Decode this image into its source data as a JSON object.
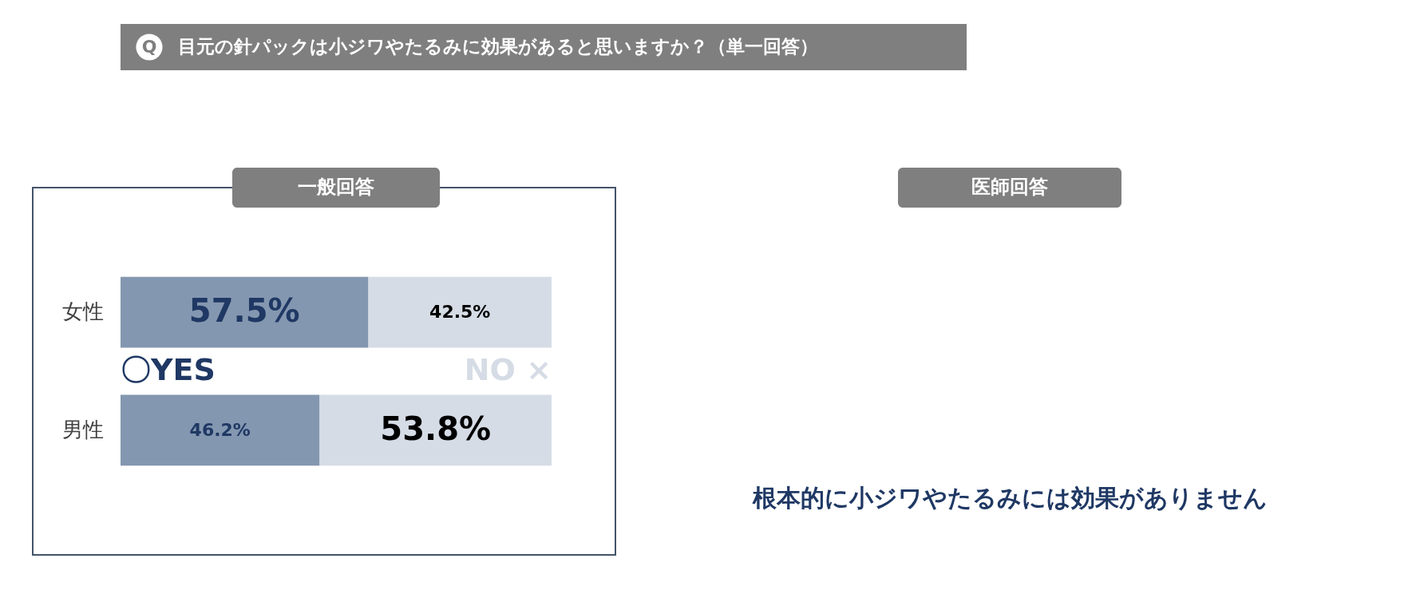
{
  "chart_data": [
    {
      "type": "bar",
      "orientation": "horizontal",
      "stacked": true,
      "title": "目元の針パックは小ジワやたるみに効果があると思いますか？（単一回答）",
      "subtitle": "一般回答",
      "annotations": [
        "Q"
      ],
      "categories": [
        "女性",
        "男性"
      ],
      "series": [
        {
          "name": "〇YES",
          "color": "#8497b0",
          "values": [
            57.5,
            46.2
          ],
          "value_labels": [
            "57.5%",
            "46.2%"
          ]
        },
        {
          "name": "NO ×",
          "color": "#d6dce5",
          "values": [
            42.5,
            53.8
          ],
          "value_labels": [
            "42.5%",
            "53.8%"
          ]
        }
      ],
      "tick_labels": "y"
    },
    {
      "type": "other",
      "title": "医師回答",
      "annotations": [
        "根本的に小ジワやたるみには効果がありません"
      ]
    }
  ]
}
